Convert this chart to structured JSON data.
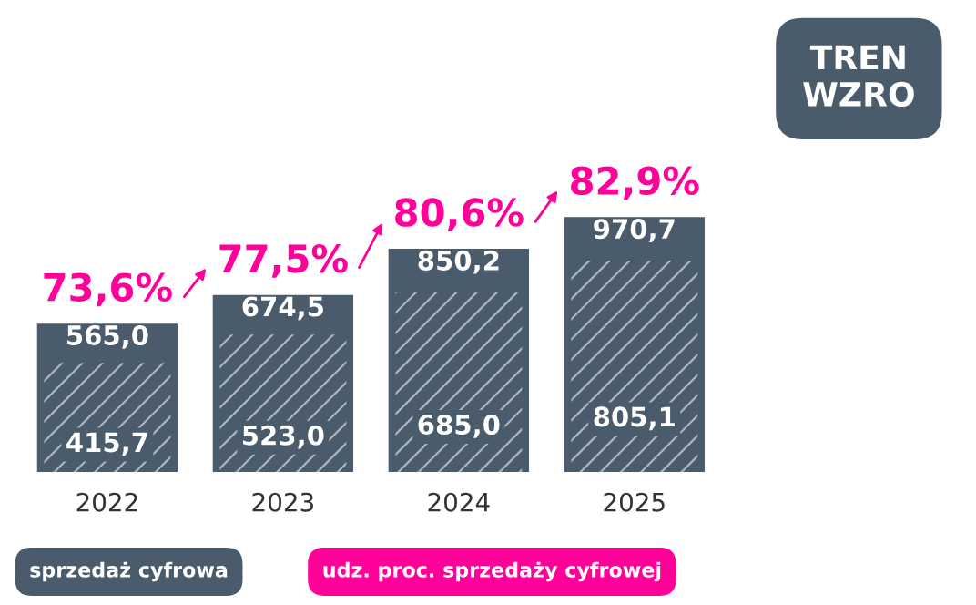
{
  "chart_data": {
    "type": "bar",
    "categories": [
      "2022",
      "2023",
      "2024",
      "2025"
    ],
    "series": [
      {
        "color": "#4a5b6b",
        "values": [
          565.0,
          674.5,
          850.2,
          970.7
        ],
        "value_labels": [
          "565,0",
          "674,5",
          "850,2",
          "970,7"
        ]
      },
      {
        "name": "sprzedaż cyfrowa",
        "color": "#4a5b6b",
        "values": [
          415.7,
          523.0,
          685.0,
          805.1
        ],
        "value_labels": [
          "415,7",
          "523,0",
          "685,0",
          "805,1"
        ]
      }
    ],
    "legend": "bottom",
    "annotations": [
      "73,6%",
      "77,5%",
      "80,6%",
      "82,9%",
      "udz. proc. sprzedaży cyfrowej",
      "TREN\nWZRO"
    ]
  }
}
